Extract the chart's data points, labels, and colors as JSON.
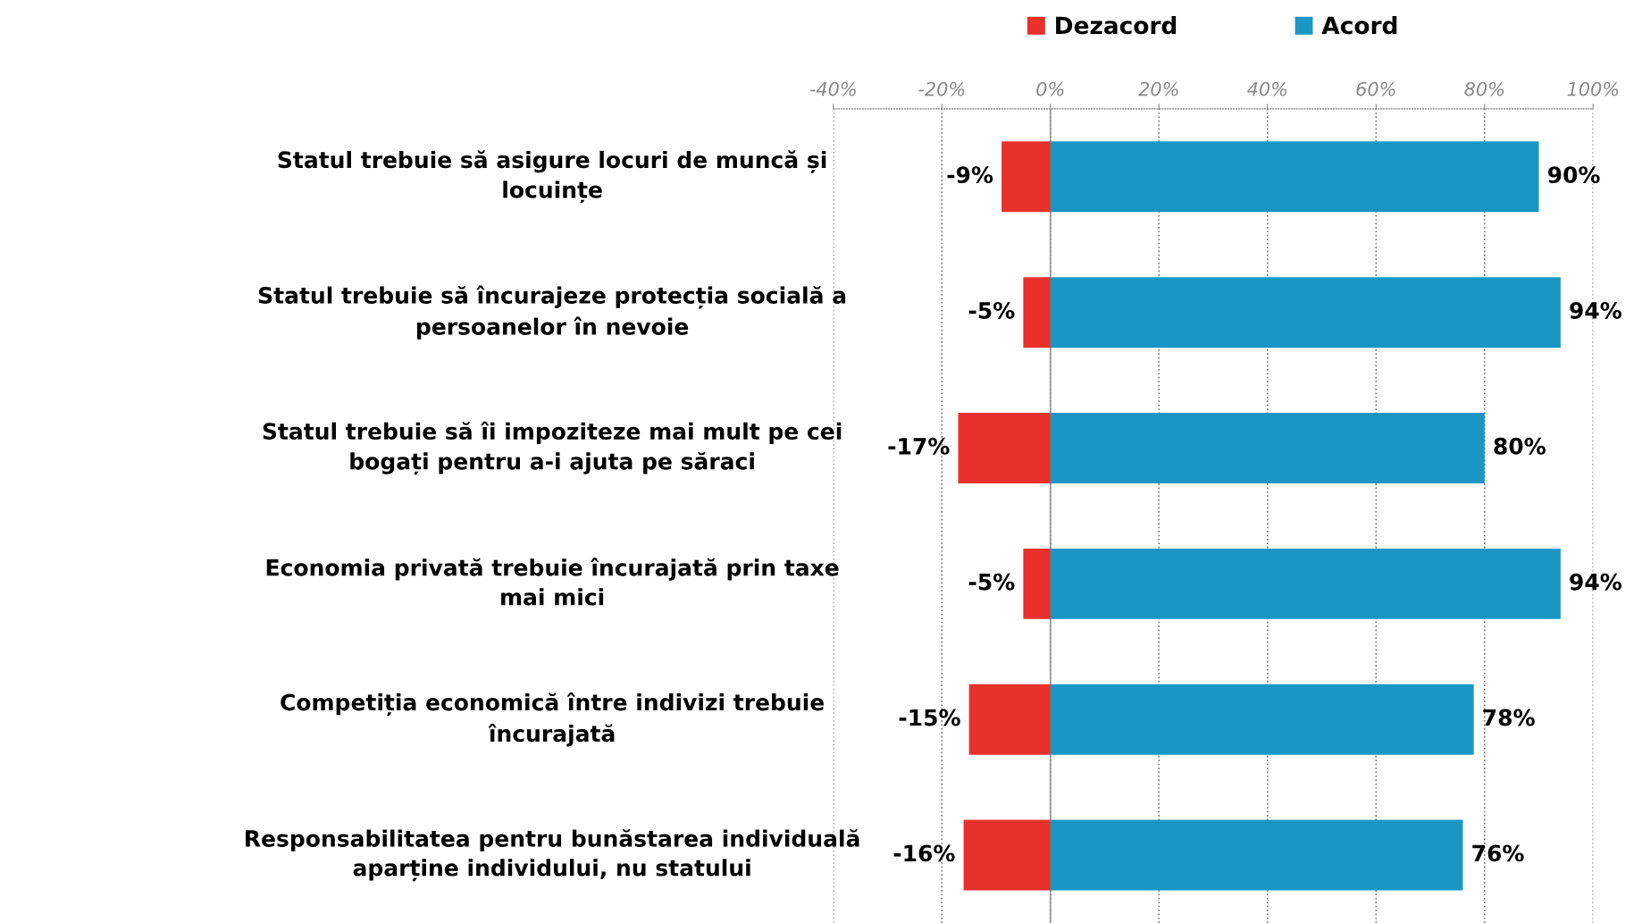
{
  "chart_data": {
    "type": "bar",
    "orientation": "horizontal",
    "stacked": true,
    "categories": [
      "Statul trebuie să asigure locuri de muncă și\nlocuințe",
      "Statul trebuie să încurajeze protecția socială a\npersoanelor în nevoie",
      "Statul trebuie să îi impoziteze mai mult pe cei\nbogați pentru a-i ajuta pe săraci",
      "Economia privată trebuie încurajată prin taxe\nmai mici",
      "Competiția economică între indivizi trebuie\nîncurajată",
      "Responsabilitatea pentru bunăstarea individuală\naparține individului, nu statului"
    ],
    "series": [
      {
        "name": "Dezacord",
        "color": "#e8312a",
        "values": [
          -9,
          -5,
          -17,
          -5,
          -15,
          -16
        ],
        "value_labels": [
          "-9%",
          "-5%",
          "-17%",
          "-5%",
          "-15%",
          "-16%"
        ]
      },
      {
        "name": "Acord",
        "color": "#1a96c4",
        "values": [
          90,
          94,
          80,
          94,
          78,
          76
        ],
        "value_labels": [
          "90%",
          "94%",
          "80%",
          "94%",
          "78%",
          "76%"
        ]
      }
    ],
    "xlim": [
      -40,
      100
    ],
    "xticks": [
      {
        "value": -40,
        "label": "-40%"
      },
      {
        "value": -20,
        "label": "-20%"
      },
      {
        "value": 0,
        "label": "0%"
      },
      {
        "value": 20,
        "label": "20%"
      },
      {
        "value": 40,
        "label": "40%"
      },
      {
        "value": 60,
        "label": "60%"
      },
      {
        "value": 80,
        "label": "80%"
      },
      {
        "value": 100,
        "label": "100%"
      }
    ],
    "grid": "x",
    "legend": "top"
  }
}
